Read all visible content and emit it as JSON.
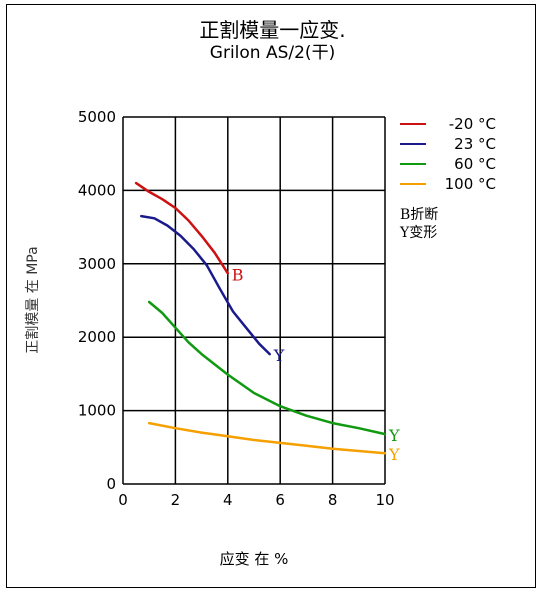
{
  "chart_data": {
    "type": "line",
    "title": "正割模量一应变.",
    "subtitle": "Grilon AS/2(干)",
    "xlabel": "应变 在 %",
    "ylabel": "正割模量 在 MPa",
    "xlim": [
      0,
      10
    ],
    "ylim": [
      0,
      5000
    ],
    "x_ticks": [
      "0",
      "2",
      "4",
      "6",
      "8",
      "10"
    ],
    "y_ticks": [
      "0",
      "1000",
      "2000",
      "3000",
      "4000",
      "5000"
    ],
    "grid": true,
    "legend_position": "right",
    "series": [
      {
        "name": "-20 °C",
        "color": "#cc1111",
        "end_marker": "B",
        "x": [
          0.5,
          1.0,
          1.5,
          2.0,
          2.5,
          3.0,
          3.5,
          4.0
        ],
        "y": [
          4100,
          3980,
          3880,
          3760,
          3590,
          3380,
          3150,
          2870
        ]
      },
      {
        "name": "23 °C",
        "color": "#1a1a8c",
        "end_marker": "Y",
        "x": [
          0.7,
          1.2,
          1.7,
          2.2,
          2.7,
          3.2,
          3.7,
          4.2,
          4.7,
          5.2,
          5.6
        ],
        "y": [
          3650,
          3620,
          3520,
          3380,
          3200,
          2980,
          2660,
          2350,
          2130,
          1910,
          1770
        ]
      },
      {
        "name": "60 °C",
        "color": "#119911",
        "end_marker": "Y",
        "x": [
          1.0,
          1.5,
          2.0,
          2.5,
          3.0,
          3.5,
          4.0,
          5.0,
          6.0,
          7.0,
          8.0,
          9.0,
          10.0
        ],
        "y": [
          2480,
          2330,
          2130,
          1930,
          1770,
          1630,
          1490,
          1240,
          1060,
          930,
          830,
          760,
          680
        ]
      },
      {
        "name": "100 °C",
        "color": "#f5a000",
        "end_marker": "Y",
        "x": [
          1.0,
          2.0,
          3.0,
          4.0,
          5.0,
          6.0,
          7.0,
          8.0,
          9.0,
          10.0
        ],
        "y": [
          830,
          760,
          700,
          650,
          600,
          560,
          520,
          480,
          450,
          420
        ]
      }
    ],
    "notes": [
      "B折断",
      "Y变形"
    ]
  }
}
